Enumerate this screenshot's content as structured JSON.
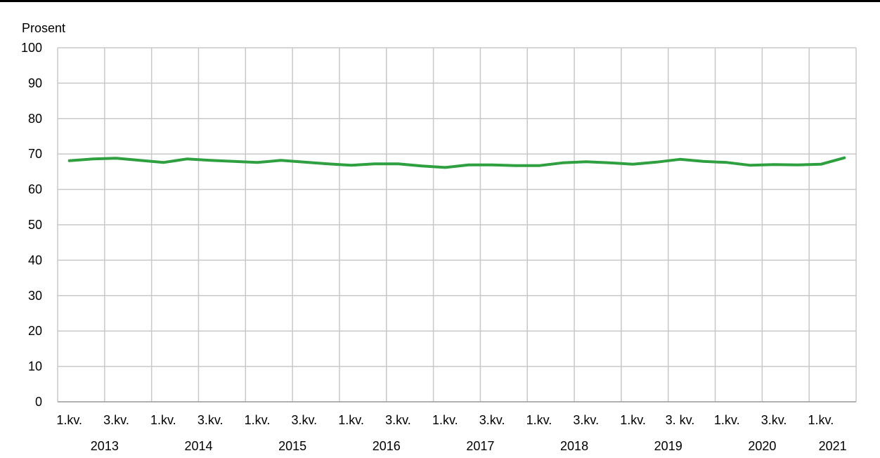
{
  "chart_data": {
    "type": "line",
    "title": "",
    "xlabel": "",
    "ylabel": "Prosent",
    "ylim": [
      0,
      100
    ],
    "yticks": [
      0,
      10,
      20,
      30,
      40,
      50,
      60,
      70,
      80,
      90,
      100
    ],
    "grid": true,
    "legend": "none",
    "line_color": "#2ea03f",
    "quarter_tick_labels": [
      "1.kv.",
      "3.kv.",
      "1.kv.",
      "3.kv.",
      "1.kv.",
      "3.kv.",
      "1.kv.",
      "3.kv.",
      "1.kv.",
      "3.kv.",
      "1.kv.",
      "3.kv.",
      "1.kv.",
      "3. kv.",
      "1.kv.",
      "3.kv.",
      "1.kv."
    ],
    "year_labels": [
      "2013",
      "2014",
      "2015",
      "2016",
      "2017",
      "2018",
      "2019",
      "2020",
      "2021"
    ],
    "x": [
      "2013 1.kv.",
      "2013 2.kv.",
      "2013 3.kv.",
      "2013 4.kv.",
      "2014 1.kv.",
      "2014 2.kv.",
      "2014 3.kv.",
      "2014 4.kv.",
      "2015 1.kv.",
      "2015 2.kv.",
      "2015 3.kv.",
      "2015 4.kv.",
      "2016 1.kv.",
      "2016 2.kv.",
      "2016 3.kv.",
      "2016 4.kv.",
      "2017 1.kv.",
      "2017 2.kv.",
      "2017 3.kv.",
      "2017 4.kv.",
      "2018 1.kv.",
      "2018 2.kv.",
      "2018 3.kv.",
      "2018 4.kv.",
      "2019 1.kv.",
      "2019 2.kv.",
      "2019 3.kv.",
      "2019 4.kv.",
      "2020 1.kv.",
      "2020 2.kv.",
      "2020 3.kv.",
      "2020 4.kv.",
      "2021 1.kv.",
      "2021 2.kv."
    ],
    "series": [
      {
        "values": [
          68.1,
          68.6,
          68.8,
          68.2,
          67.6,
          68.6,
          68.2,
          67.9,
          67.6,
          68.2,
          67.7,
          67.2,
          66.8,
          67.2,
          67.2,
          66.6,
          66.2,
          66.9,
          66.9,
          66.7,
          66.7,
          67.5,
          67.8,
          67.5,
          67.1,
          67.7,
          68.5,
          67.9,
          67.6,
          66.8,
          67.0,
          66.9,
          67.1,
          68.9
        ]
      }
    ]
  }
}
